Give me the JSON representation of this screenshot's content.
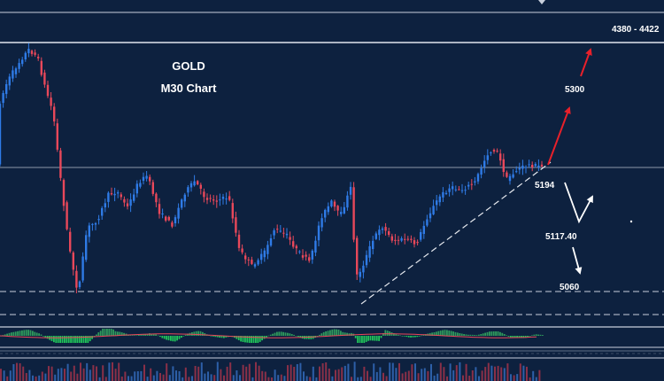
{
  "chart_data": {
    "type": "candlestick",
    "title": "GOLD",
    "subtitle": "M30 Chart",
    "colors": {
      "background": "#0d213f",
      "bull": "#2f7be6",
      "bear": "#e8485a",
      "target_arrow": "#e8202a",
      "alt_arrow": "#ffffff",
      "line": "#d9dee8",
      "macd_up": "#21c45a",
      "macd_down": "#2f9a5c"
    },
    "levels": [
      {
        "name": "target-zone",
        "label": "4380 - 4422",
        "style": "solid"
      },
      {
        "name": "target-high",
        "label": "5300",
        "style": "solid"
      },
      {
        "name": "resistance",
        "label": "5194",
        "style": "solid"
      },
      {
        "name": "pivot",
        "label": "5117.40",
        "style": "none"
      },
      {
        "name": "support",
        "label": "5060",
        "style": "dashed"
      }
    ],
    "trendline": {
      "style": "dashed",
      "direction": "rising"
    },
    "indicators": [
      "oscillator",
      "volume"
    ]
  }
}
